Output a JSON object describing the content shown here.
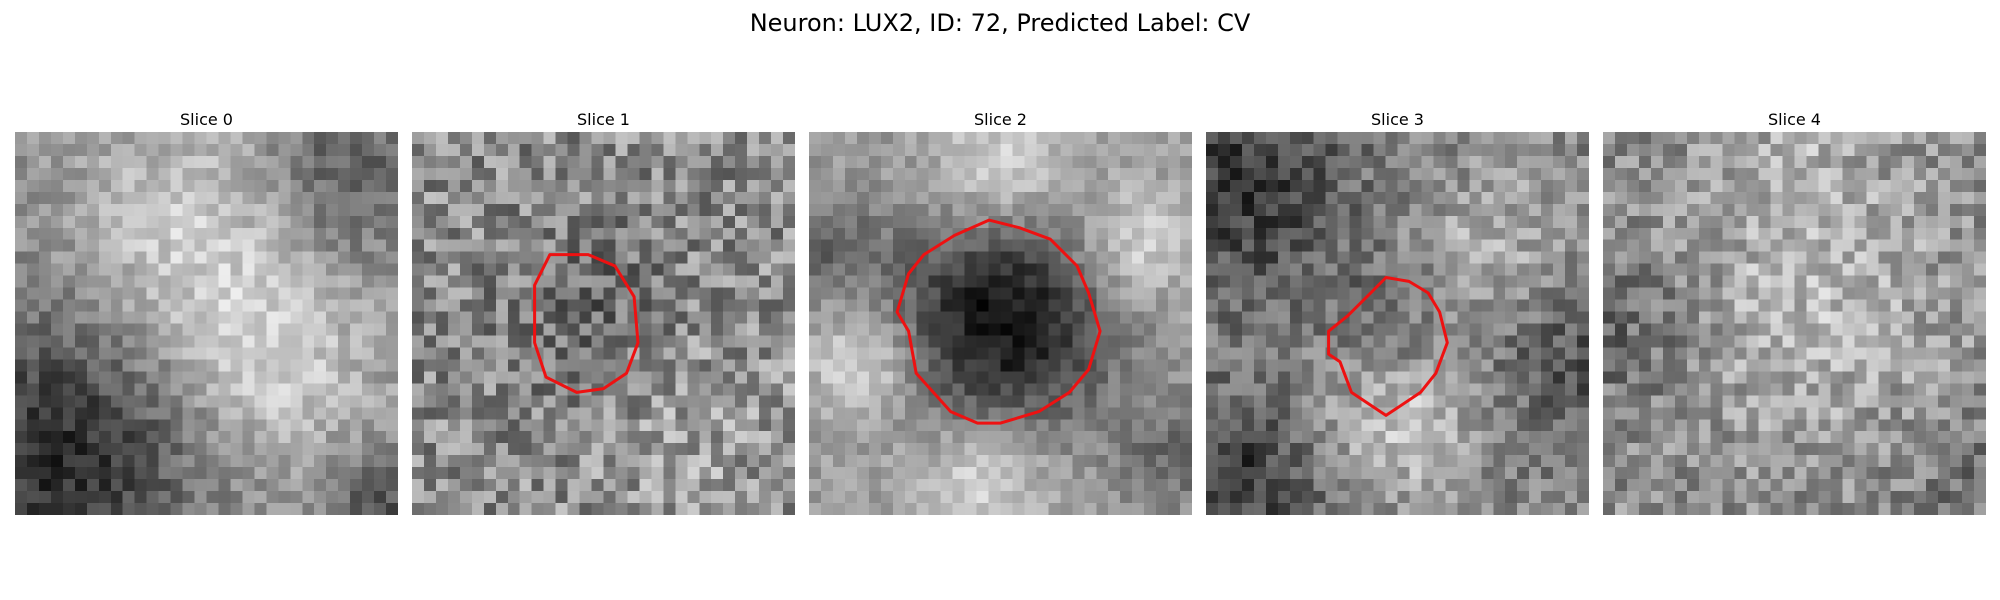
{
  "figure": {
    "title": "Neuron: LUX2, ID: 72, Predicted Label: CV"
  },
  "slices": [
    {
      "title": "Slice 0",
      "has_contour": false
    },
    {
      "title": "Slice 1",
      "has_contour": true
    },
    {
      "title": "Slice 2",
      "has_contour": true
    },
    {
      "title": "Slice 3",
      "has_contour": true
    },
    {
      "title": "Slice 4",
      "has_contour": false
    }
  ],
  "colors": {
    "contour": "#ee1111",
    "background": "#ffffff"
  }
}
